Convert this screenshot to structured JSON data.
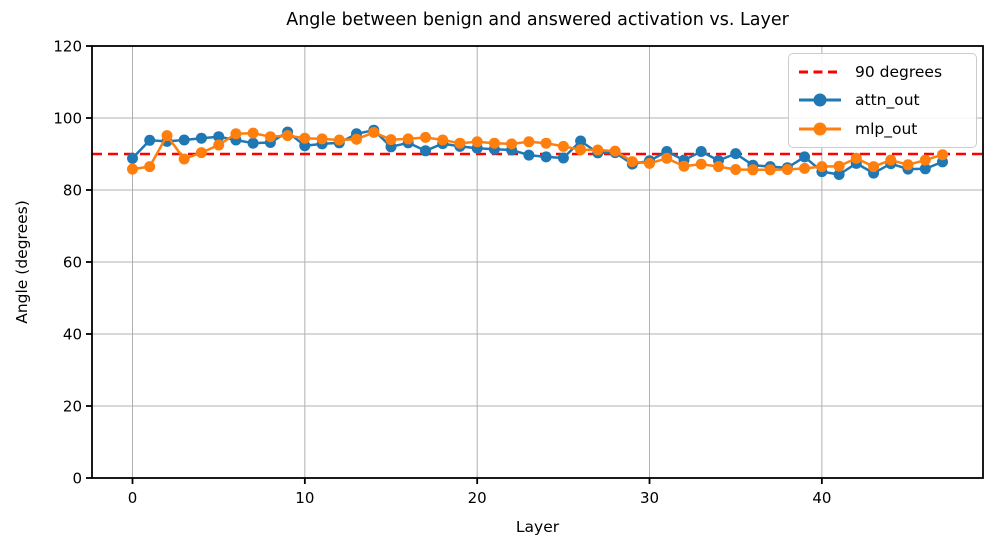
{
  "chart_data": {
    "type": "line",
    "title": "Angle between benign and answered activation vs. Layer",
    "xlabel": "Layer",
    "ylabel": "Angle (degrees)",
    "x": [
      0,
      1,
      2,
      3,
      4,
      5,
      6,
      7,
      8,
      9,
      10,
      11,
      12,
      13,
      14,
      15,
      16,
      17,
      18,
      19,
      20,
      21,
      22,
      23,
      24,
      25,
      26,
      27,
      28,
      29,
      30,
      31,
      32,
      33,
      34,
      35,
      36,
      37,
      38,
      39,
      40,
      41,
      42,
      43,
      44,
      45,
      46,
      47
    ],
    "series": [
      {
        "name": "attn_out",
        "color": "#1f77b4",
        "values": [
          88.8,
          93.8,
          93.5,
          93.9,
          94.4,
          94.8,
          93.9,
          93.0,
          93.2,
          96.1,
          92.3,
          92.8,
          93.1,
          95.6,
          96.6,
          92.0,
          93.1,
          90.9,
          92.9,
          92.1,
          91.6,
          91.3,
          91.1,
          89.7,
          89.2,
          88.9,
          93.6,
          90.3,
          90.4,
          87.2,
          88.1,
          90.7,
          88.3,
          90.7,
          88.2,
          90.1,
          86.9,
          86.5,
          86.2,
          89.2,
          85.1,
          84.3,
          87.4,
          84.7,
          87.3,
          85.8,
          85.9,
          87.8
        ]
      },
      {
        "name": "mlp_out",
        "color": "#ff7f0e",
        "values": [
          85.8,
          86.5,
          95.1,
          88.6,
          90.4,
          92.5,
          95.6,
          95.8,
          94.8,
          95.1,
          94.4,
          94.2,
          93.9,
          94.1,
          96.0,
          94.0,
          94.2,
          94.6,
          93.9,
          93.0,
          93.4,
          93.0,
          92.8,
          93.4,
          93.0,
          92.1,
          91.2,
          91.1,
          90.8,
          87.9,
          87.4,
          88.8,
          86.6,
          87.2,
          86.5,
          85.7,
          85.6,
          85.6,
          85.7,
          86.0,
          86.5,
          86.6,
          88.8,
          86.5,
          88.3,
          87.0,
          88.3,
          89.8
        ]
      }
    ],
    "reference_line": {
      "label": "90 degrees",
      "value": 90,
      "color": "#ff0000",
      "style": "dashed"
    },
    "xticks": [
      0,
      10,
      20,
      30,
      40
    ],
    "yticks": [
      0,
      20,
      40,
      60,
      80,
      100,
      120
    ],
    "xlim": [
      -2.35,
      49.35
    ],
    "ylim": [
      0,
      120
    ],
    "grid": true,
    "grid_color": "#b0b0b0",
    "axis_color": "#000000",
    "background": "#ffffff",
    "legend_position": "upper right",
    "legend": {
      "items": [
        {
          "label": "90 degrees"
        },
        {
          "label": "attn_out"
        },
        {
          "label": "mlp_out"
        }
      ]
    }
  }
}
